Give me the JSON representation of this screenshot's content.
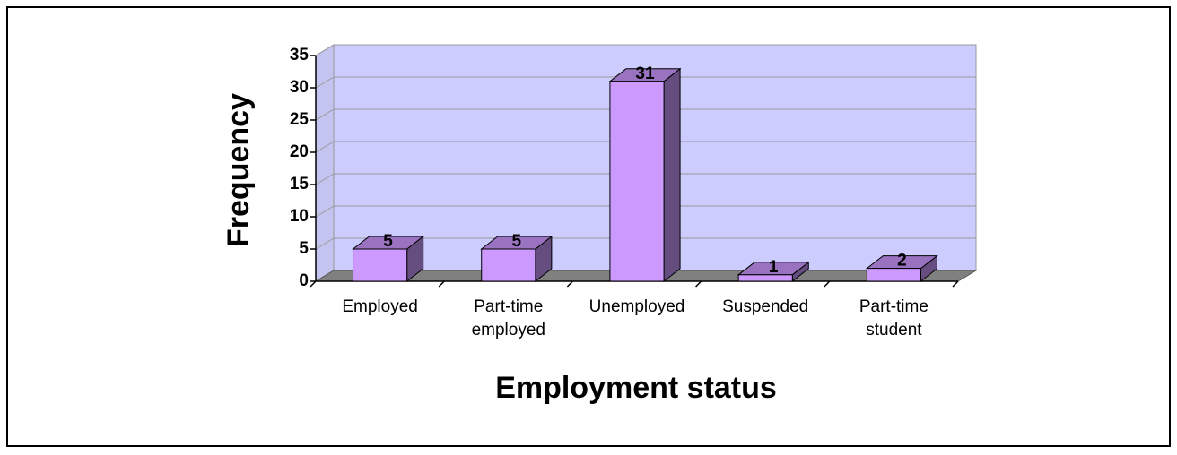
{
  "chart_data": {
    "type": "bar",
    "xlabel": "Employment status",
    "ylabel": "Frequency",
    "categories": [
      "Employed",
      "Part-time employed",
      "Unemployed",
      "Suspended",
      "Part-time student"
    ],
    "values": [
      5,
      5,
      31,
      1,
      2
    ],
    "color": "#cc99ff",
    "ylim": [
      0,
      35
    ],
    "yticks": [
      0,
      5,
      10,
      15,
      20,
      25,
      30,
      35
    ],
    "grid": true
  }
}
